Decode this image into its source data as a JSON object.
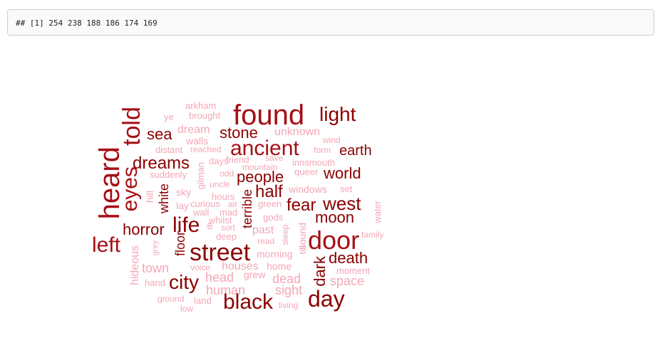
{
  "console": {
    "output": "## [1] 254 238 188 186 174 169"
  },
  "wordcloud": {
    "colors": {
      "dark": "#8b0000",
      "mid": "#a50f15",
      "light": "#f4a6b6"
    },
    "words": [
      {
        "text": "found",
        "s": 40,
        "c": "mid"
      },
      {
        "text": "light",
        "s": 28,
        "c": "dark"
      },
      {
        "text": "arkham",
        "s": 13,
        "c": "light"
      },
      {
        "text": "ye",
        "s": 13,
        "c": "light"
      },
      {
        "text": "brought",
        "s": 13,
        "c": "light"
      },
      {
        "text": "told",
        "s": 34,
        "c": "mid",
        "v": true
      },
      {
        "text": "heard",
        "s": 40,
        "c": "mid",
        "v": true
      },
      {
        "text": "eyes",
        "s": 30,
        "c": "mid",
        "v": true
      },
      {
        "text": "sea",
        "s": 22,
        "c": "dark"
      },
      {
        "text": "dream",
        "s": 16,
        "c": "light"
      },
      {
        "text": "stone",
        "s": 22,
        "c": "dark"
      },
      {
        "text": "unknown",
        "s": 16,
        "c": "light"
      },
      {
        "text": "ancient",
        "s": 30,
        "c": "mid"
      },
      {
        "text": "walls",
        "s": 14,
        "c": "light"
      },
      {
        "text": "wind",
        "s": 12,
        "c": "light"
      },
      {
        "text": "earth",
        "s": 20,
        "c": "dark"
      },
      {
        "text": "distant",
        "s": 13,
        "c": "light"
      },
      {
        "text": "reached",
        "s": 12,
        "c": "light"
      },
      {
        "text": "form",
        "s": 12,
        "c": "light"
      },
      {
        "text": "dreams",
        "s": 24,
        "c": "dark"
      },
      {
        "text": "days",
        "s": 13,
        "c": "light"
      },
      {
        "text": "friend",
        "s": 13,
        "c": "light"
      },
      {
        "text": "save",
        "s": 12,
        "c": "light"
      },
      {
        "text": "innsmouth",
        "s": 13,
        "c": "light"
      },
      {
        "text": "mountain",
        "s": 12,
        "c": "light"
      },
      {
        "text": "queer",
        "s": 13,
        "c": "light"
      },
      {
        "text": "world",
        "s": 22,
        "c": "dark"
      },
      {
        "text": "suddenly",
        "s": 13,
        "c": "light"
      },
      {
        "text": "odd",
        "s": 12,
        "c": "light"
      },
      {
        "text": "people",
        "s": 22,
        "c": "dark"
      },
      {
        "text": "gilman",
        "s": 13,
        "c": "light",
        "v": true
      },
      {
        "text": "uncle",
        "s": 12,
        "c": "light"
      },
      {
        "text": "sky",
        "s": 14,
        "c": "light"
      },
      {
        "text": "hill",
        "s": 14,
        "c": "light",
        "v": true
      },
      {
        "text": "white",
        "s": 18,
        "c": "dark",
        "v": true
      },
      {
        "text": "half",
        "s": 24,
        "c": "dark"
      },
      {
        "text": "windows",
        "s": 14,
        "c": "light"
      },
      {
        "text": "set",
        "s": 13,
        "c": "light"
      },
      {
        "text": "hours",
        "s": 13,
        "c": "light"
      },
      {
        "text": "terrible",
        "s": 18,
        "c": "dark",
        "v": true
      },
      {
        "text": "west",
        "s": 26,
        "c": "dark"
      },
      {
        "text": "lay",
        "s": 14,
        "c": "light"
      },
      {
        "text": "curious",
        "s": 13,
        "c": "light"
      },
      {
        "text": "air",
        "s": 12,
        "c": "light"
      },
      {
        "text": "green",
        "s": 13,
        "c": "light"
      },
      {
        "text": "fear",
        "s": 24,
        "c": "dark"
      },
      {
        "text": "wall",
        "s": 13,
        "c": "light"
      },
      {
        "text": "mad",
        "s": 13,
        "c": "light"
      },
      {
        "text": "moon",
        "s": 22,
        "c": "dark"
      },
      {
        "text": "water",
        "s": 13,
        "c": "light",
        "v": true
      },
      {
        "text": "horror",
        "s": 22,
        "c": "dark"
      },
      {
        "text": "life",
        "s": 30,
        "c": "dark"
      },
      {
        "text": "whilst",
        "s": 13,
        "c": "light"
      },
      {
        "text": "gods",
        "s": 13,
        "c": "light"
      },
      {
        "text": "sort",
        "s": 12,
        "c": "light"
      },
      {
        "text": "dr",
        "s": 12,
        "c": "light",
        "v": true
      },
      {
        "text": "past",
        "s": 16,
        "c": "light"
      },
      {
        "text": "sleep",
        "s": 12,
        "c": "light",
        "v": true
      },
      {
        "text": "sound",
        "s": 14,
        "c": "light",
        "v": true
      },
      {
        "text": "door",
        "s": 36,
        "c": "mid"
      },
      {
        "text": "family",
        "s": 12,
        "c": "light"
      },
      {
        "text": "deep",
        "s": 13,
        "c": "light"
      },
      {
        "text": "read",
        "s": 12,
        "c": "light"
      },
      {
        "text": "left",
        "s": 30,
        "c": "mid"
      },
      {
        "text": "grey",
        "s": 11,
        "c": "light",
        "v": true
      },
      {
        "text": "floor",
        "s": 18,
        "c": "dark",
        "v": true
      },
      {
        "text": "street",
        "s": 34,
        "c": "dark"
      },
      {
        "text": "morning",
        "s": 14,
        "c": "light"
      },
      {
        "text": "till",
        "s": 13,
        "c": "light",
        "v": true
      },
      {
        "text": "death",
        "s": 22,
        "c": "dark"
      },
      {
        "text": "hideous",
        "s": 16,
        "c": "light",
        "v": true
      },
      {
        "text": "town",
        "s": 18,
        "c": "light"
      },
      {
        "text": "voice",
        "s": 12,
        "c": "light"
      },
      {
        "text": "houses",
        "s": 16,
        "c": "light"
      },
      {
        "text": "home",
        "s": 14,
        "c": "light"
      },
      {
        "text": "dark",
        "s": 22,
        "c": "dark",
        "v": true
      },
      {
        "text": "moment",
        "s": 13,
        "c": "light"
      },
      {
        "text": "head",
        "s": 18,
        "c": "light"
      },
      {
        "text": "grew",
        "s": 14,
        "c": "light"
      },
      {
        "text": "dead",
        "s": 18,
        "c": "light"
      },
      {
        "text": "space",
        "s": 18,
        "c": "light"
      },
      {
        "text": "hand",
        "s": 13,
        "c": "light"
      },
      {
        "text": "city",
        "s": 28,
        "c": "dark"
      },
      {
        "text": "human",
        "s": 18,
        "c": "light"
      },
      {
        "text": "sight",
        "s": 18,
        "c": "light"
      },
      {
        "text": "ground",
        "s": 12,
        "c": "light"
      },
      {
        "text": "land",
        "s": 13,
        "c": "light"
      },
      {
        "text": "black",
        "s": 30,
        "c": "dark"
      },
      {
        "text": "living",
        "s": 12,
        "c": "light"
      },
      {
        "text": "day",
        "s": 32,
        "c": "dark"
      },
      {
        "text": "low",
        "s": 12,
        "c": "light"
      }
    ]
  }
}
